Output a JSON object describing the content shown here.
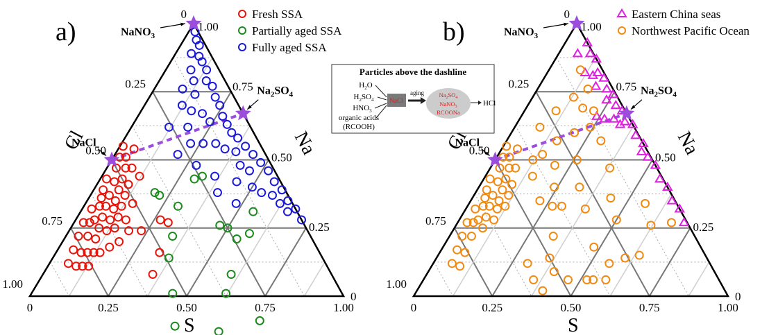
{
  "colors": {
    "fresh": "#e8140a",
    "partial": "#1c8a1c",
    "fully": "#1a1ad8",
    "east": "#e020e0",
    "nwp": "#f08a10",
    "star": "#9b4ddb",
    "dash": "#9b4ddb",
    "grid_dark": "#777777",
    "grid_light": "#cfcfcf",
    "grid_dot": "#aaaaaa"
  },
  "chart_data": [
    {
      "type": "scatter",
      "ternary": true,
      "panel": "a)",
      "axes": {
        "bottom": {
          "label": "S",
          "ticks": [
            "0",
            "0.25",
            "0.50",
            "0.75",
            "1.00"
          ]
        },
        "left": {
          "label": "Cl",
          "ticks": [
            "1.00",
            "0.75",
            "0.50",
            "0.25",
            "0"
          ]
        },
        "right": {
          "label": "Na",
          "ticks": [
            "1.00",
            "0.75",
            "0.50",
            "0.25",
            "0"
          ]
        }
      },
      "legend_placement": "top-right",
      "reference_points": [
        {
          "label": "NaNO",
          "sub": "3",
          "S": 0.0,
          "Cl": 0.0,
          "Na": 1.0
        },
        {
          "label": "Na",
          "sub": "2",
          "after": "SO",
          "sub2": "4",
          "S": 0.33,
          "Cl": 0.0,
          "Na": 0.67
        },
        {
          "label": "NaCl",
          "S": 0.0,
          "Cl": 0.5,
          "Na": 0.5
        }
      ],
      "dashline": [
        {
          "S": 0.0,
          "Cl": 0.5,
          "Na": 0.5
        },
        {
          "S": 0.33,
          "Cl": 0.0,
          "Na": 0.67
        }
      ],
      "series": [
        {
          "name": "Fresh SSA",
          "marker": "circle",
          "color": "#e8140a",
          "points": [
            [
              0.01,
              0.44
            ],
            [
              0.02,
              0.47
            ],
            [
              0.03,
              0.5
            ],
            [
              0.04,
              0.45
            ],
            [
              0.05,
              0.41
            ],
            [
              0.06,
              0.47
            ],
            [
              0.02,
              0.55
            ],
            [
              0.03,
              0.58
            ],
            [
              0.05,
              0.53
            ],
            [
              0.07,
              0.5
            ],
            [
              0.08,
              0.45
            ],
            [
              0.1,
              0.49
            ],
            [
              0.12,
              0.44
            ],
            [
              0.04,
              0.6
            ],
            [
              0.06,
              0.57
            ],
            [
              0.08,
              0.53
            ],
            [
              0.09,
              0.56
            ],
            [
              0.11,
              0.52
            ],
            [
              0.03,
              0.65
            ],
            [
              0.05,
              0.62
            ],
            [
              0.07,
              0.6
            ],
            [
              0.1,
              0.58
            ],
            [
              0.12,
              0.55
            ],
            [
              0.15,
              0.51
            ],
            [
              0.06,
              0.66
            ],
            [
              0.08,
              0.63
            ],
            [
              0.11,
              0.61
            ],
            [
              0.13,
              0.58
            ],
            [
              0.03,
              0.7
            ],
            [
              0.05,
              0.68
            ],
            [
              0.09,
              0.66
            ],
            [
              0.12,
              0.64
            ],
            [
              0.14,
              0.61
            ],
            [
              0.04,
              0.74
            ],
            [
              0.07,
              0.71
            ],
            [
              0.1,
              0.69
            ],
            [
              0.16,
              0.56
            ],
            [
              0.05,
              0.78
            ],
            [
              0.08,
              0.76
            ],
            [
              0.1,
              0.74
            ],
            [
              0.12,
              0.72
            ],
            [
              0.06,
              0.82
            ],
            [
              0.09,
              0.8
            ],
            [
              0.11,
              0.78
            ],
            [
              0.13,
              0.76
            ],
            [
              0.19,
              0.57
            ],
            [
              0.23,
              0.53
            ],
            [
              0.27,
              0.45
            ],
            [
              0.3,
              0.43
            ],
            [
              0.33,
              0.51
            ],
            [
              0.35,
              0.57
            ],
            [
              0.16,
              0.66
            ],
            [
              0.18,
              0.62
            ],
            [
              0.14,
              0.7
            ]
          ]
        },
        {
          "name": "Partially aged SSA",
          "marker": "circle",
          "color": "#1c8a1c",
          "points": [
            [
              0.2,
              0.42
            ],
            [
              0.22,
              0.41
            ],
            [
              0.3,
              0.37
            ],
            [
              0.34,
              0.44
            ],
            [
              0.37,
              0.49
            ],
            [
              0.45,
              0.54
            ],
            [
              0.52,
              0.59
            ],
            [
              0.47,
              0.27
            ],
            [
              0.5,
              0.25
            ],
            [
              0.55,
              0.14
            ],
            [
              0.58,
              0.19
            ],
            [
              0.62,
              0.37
            ],
            [
              0.67,
              0.46
            ],
            [
              0.78,
              0.31
            ],
            [
              0.55,
              0.24
            ],
            [
              0.3,
              0.27
            ],
            [
              0.32,
              0.24
            ],
            [
              0.6,
              0.32
            ]
          ]
        },
        {
          "name": "Fully aged SSA",
          "marker": "circle",
          "color": "#1a1ad8",
          "points": [
            [
              0.02,
              0.01
            ],
            [
              0.04,
              0.02
            ],
            [
              0.06,
              0.02
            ],
            [
              0.08,
              0.04
            ],
            [
              0.1,
              0.04
            ],
            [
              0.13,
              0.04
            ],
            [
              0.15,
              0.06
            ],
            [
              0.18,
              0.05
            ],
            [
              0.21,
              0.06
            ],
            [
              0.24,
              0.06
            ],
            [
              0.27,
              0.07
            ],
            [
              0.3,
              0.07
            ],
            [
              0.33,
              0.07
            ],
            [
              0.36,
              0.06
            ],
            [
              0.4,
              0.05
            ],
            [
              0.44,
              0.04
            ],
            [
              0.48,
              0.03
            ],
            [
              0.52,
              0.02
            ],
            [
              0.56,
              0.02
            ],
            [
              0.6,
              0.01
            ],
            [
              0.64,
              0.01
            ],
            [
              0.68,
              0.0
            ],
            [
              0.72,
              0.0
            ],
            [
              0.05,
              0.06
            ],
            [
              0.08,
              0.09
            ],
            [
              0.11,
              0.1
            ],
            [
              0.14,
              0.12
            ],
            [
              0.09,
              0.15
            ],
            [
              0.12,
              0.18
            ],
            [
              0.16,
              0.16
            ],
            [
              0.2,
              0.13
            ],
            [
              0.24,
              0.12
            ],
            [
              0.18,
              0.2
            ],
            [
              0.22,
              0.22
            ],
            [
              0.26,
              0.18
            ],
            [
              0.3,
              0.14
            ],
            [
              0.34,
              0.12
            ],
            [
              0.38,
              0.09
            ],
            [
              0.42,
              0.1
            ],
            [
              0.46,
              0.08
            ],
            [
              0.12,
              0.26
            ],
            [
              0.2,
              0.28
            ],
            [
              0.28,
              0.24
            ],
            [
              0.4,
              0.22
            ],
            [
              0.44,
              0.14
            ],
            [
              0.5,
              0.1
            ],
            [
              0.54,
              0.08
            ],
            [
              0.58,
              0.05
            ],
            [
              0.62,
              0.04
            ],
            [
              0.66,
              0.03
            ],
            [
              0.36,
              0.2
            ],
            [
              0.48,
              0.18
            ]
          ]
        }
      ]
    },
    {
      "type": "scatter",
      "ternary": true,
      "panel": "b)",
      "axes": {
        "bottom": {
          "label": "S",
          "ticks": [
            "0",
            "0.25",
            "0.50",
            "0.75",
            "1.00"
          ]
        },
        "left": {
          "label": "Cl",
          "ticks": [
            "1.00",
            "0.75",
            "0.50",
            "0.25",
            "0"
          ]
        },
        "right": {
          "label": "Na",
          "ticks": [
            "1.00",
            "0.75",
            "0.50",
            "0.25",
            "0"
          ]
        }
      },
      "legend_placement": "top-right",
      "reference_points": [
        {
          "label": "NaNO",
          "sub": "3",
          "S": 0.0,
          "Cl": 0.0,
          "Na": 1.0
        },
        {
          "label": "Na",
          "sub": "2",
          "after": "SO",
          "sub2": "4",
          "S": 0.33,
          "Cl": 0.0,
          "Na": 0.67
        },
        {
          "label": "NaCl",
          "S": 0.0,
          "Cl": 0.5,
          "Na": 0.5
        }
      ],
      "dashline": [
        {
          "S": 0.0,
          "Cl": 0.5,
          "Na": 0.5
        },
        {
          "S": 0.33,
          "Cl": 0.0,
          "Na": 0.67
        }
      ],
      "series": [
        {
          "name": "Eastern China seas",
          "marker": "triangle",
          "color": "#e020e0",
          "points": [
            [
              0.07,
              0.0
            ],
            [
              0.1,
              0.01
            ],
            [
              0.13,
              0.0
            ],
            [
              0.16,
              0.02
            ],
            [
              0.19,
              0.01
            ],
            [
              0.22,
              0.02
            ],
            [
              0.25,
              0.01
            ],
            [
              0.28,
              0.02
            ],
            [
              0.31,
              0.01
            ],
            [
              0.34,
              0.02
            ],
            [
              0.37,
              0.0
            ],
            [
              0.4,
              0.01
            ],
            [
              0.44,
              0.0
            ],
            [
              0.48,
              0.01
            ],
            [
              0.52,
              0.0
            ],
            [
              0.56,
              0.01
            ],
            [
              0.6,
              0.0
            ],
            [
              0.64,
              0.01
            ],
            [
              0.68,
              0.0
            ],
            [
              0.72,
              0.01
            ],
            [
              0.06,
              0.05
            ],
            [
              0.12,
              0.06
            ],
            [
              0.18,
              0.05
            ],
            [
              0.24,
              0.04
            ],
            [
              0.3,
              0.05
            ],
            [
              0.24,
              0.1
            ],
            [
              0.27,
              0.08
            ],
            [
              0.45,
              0.02
            ],
            [
              0.33,
              0.04
            ],
            [
              0.15,
              0.04
            ]
          ]
        },
        {
          "name": "Northwest Pacific Ocean",
          "marker": "circle",
          "color": "#f08a10",
          "points": [
            [
              0.01,
              0.44
            ],
            [
              0.02,
              0.47
            ],
            [
              0.03,
              0.5
            ],
            [
              0.04,
              0.45
            ],
            [
              0.05,
              0.41
            ],
            [
              0.06,
              0.47
            ],
            [
              0.02,
              0.55
            ],
            [
              0.03,
              0.58
            ],
            [
              0.05,
              0.53
            ],
            [
              0.07,
              0.5
            ],
            [
              0.08,
              0.45
            ],
            [
              0.1,
              0.49
            ],
            [
              0.04,
              0.6
            ],
            [
              0.06,
              0.57
            ],
            [
              0.08,
              0.53
            ],
            [
              0.09,
              0.56
            ],
            [
              0.11,
              0.52
            ],
            [
              0.03,
              0.65
            ],
            [
              0.05,
              0.62
            ],
            [
              0.07,
              0.6
            ],
            [
              0.1,
              0.58
            ],
            [
              0.12,
              0.55
            ],
            [
              0.06,
              0.66
            ],
            [
              0.08,
              0.63
            ],
            [
              0.11,
              0.61
            ],
            [
              0.03,
              0.7
            ],
            [
              0.05,
              0.68
            ],
            [
              0.09,
              0.66
            ],
            [
              0.04,
              0.74
            ],
            [
              0.07,
              0.71
            ],
            [
              0.05,
              0.78
            ],
            [
              0.08,
              0.76
            ],
            [
              0.06,
              0.82
            ],
            [
              0.09,
              0.8
            ],
            [
              0.12,
              0.38
            ],
            [
              0.15,
              0.41
            ],
            [
              0.14,
              0.34
            ],
            [
              0.2,
              0.32
            ],
            [
              0.24,
              0.36
            ],
            [
              0.22,
              0.43
            ],
            [
              0.27,
              0.4
            ],
            [
              0.3,
              0.37
            ],
            [
              0.33,
              0.45
            ],
            [
              0.36,
              0.5
            ],
            [
              0.4,
              0.51
            ],
            [
              0.3,
              0.58
            ],
            [
              0.35,
              0.59
            ],
            [
              0.4,
              0.58
            ],
            [
              0.46,
              0.48
            ],
            [
              0.52,
              0.42
            ],
            [
              0.48,
              0.34
            ],
            [
              0.56,
              0.32
            ],
            [
              0.6,
              0.26
            ],
            [
              0.64,
              0.21
            ],
            [
              0.5,
              0.22
            ],
            [
              0.44,
              0.2
            ],
            [
              0.38,
              0.15
            ],
            [
              0.3,
              0.13
            ],
            [
              0.22,
              0.1
            ],
            [
              0.16,
              0.08
            ],
            [
              0.1,
              0.07
            ],
            [
              0.13,
              0.14
            ],
            [
              0.18,
              0.13
            ],
            [
              0.24,
              0.14
            ],
            [
              0.2,
              0.2
            ],
            [
              0.26,
              0.24
            ],
            [
              0.32,
              0.28
            ],
            [
              0.16,
              0.27
            ],
            [
              0.1,
              0.22
            ],
            [
              0.08,
              0.3
            ],
            [
              0.56,
              0.1
            ],
            [
              0.62,
              0.12
            ],
            [
              0.68,
              0.05
            ],
            [
              0.54,
              0.4
            ],
            [
              0.58,
              0.36
            ],
            [
              0.38,
              0.3
            ]
          ]
        }
      ]
    }
  ],
  "inset": {
    "title": "Particles above the dashline",
    "inputs": [
      "H",
      "2",
      "O",
      "H",
      "2",
      "SO",
      "4",
      "HNO",
      "3",
      "organic acids",
      "(RCOOH)"
    ],
    "box": "NaCl",
    "arrow_label": "aging",
    "products": [
      "Na",
      "2",
      "SO",
      "4",
      "NaNO",
      "3",
      "RCOONa"
    ],
    "output": "HCl"
  }
}
